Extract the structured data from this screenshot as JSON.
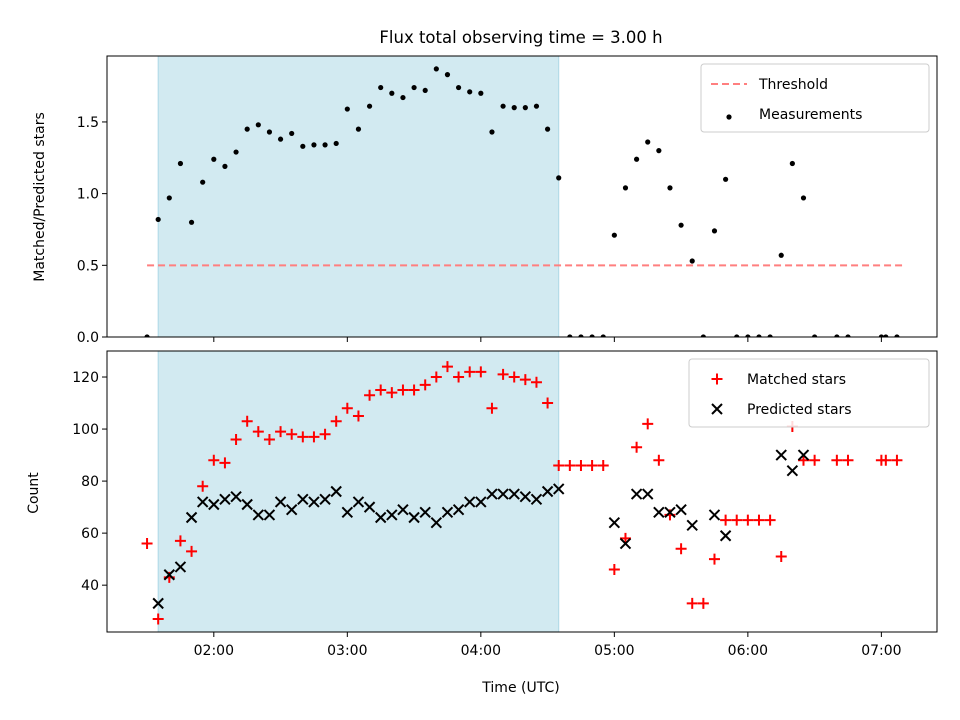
{
  "figure": {
    "title": "Flux total observing time = 3.00 h"
  },
  "chart_data": [
    {
      "type": "scatter",
      "ylabel": "Matched/Predicted stars",
      "ylim": [
        0,
        1.96
      ],
      "xlim": [
        "01:12",
        "07:25"
      ],
      "grid": false,
      "legend_position": "upper-right",
      "yticks": [
        {
          "value": 0.0,
          "label": "0.0"
        },
        {
          "value": 0.5,
          "label": "0.5"
        },
        {
          "value": 1.0,
          "label": "1.0"
        },
        {
          "value": 1.5,
          "label": "1.5"
        }
      ],
      "xticks": [
        "02:00",
        "03:00",
        "04:00",
        "05:00",
        "06:00",
        "07:00"
      ],
      "shaded_interval": {
        "start": "01:35",
        "end": "04:35",
        "color": "#add8e6"
      },
      "threshold": {
        "name": "Threshold",
        "value": 0.5,
        "x_start": "01:30",
        "x_end": "07:11",
        "color": "#ff7f7f",
        "style": "dashed"
      },
      "series": [
        {
          "name": "Measurements",
          "color": "#000000",
          "marker": "dot",
          "points": [
            [
              "01:30",
              0.0
            ],
            [
              "01:35",
              0.82
            ],
            [
              "01:40",
              0.97
            ],
            [
              "01:45",
              1.21
            ],
            [
              "01:50",
              0.8
            ],
            [
              "01:55",
              1.08
            ],
            [
              "02:00",
              1.24
            ],
            [
              "02:05",
              1.19
            ],
            [
              "02:10",
              1.29
            ],
            [
              "02:15",
              1.45
            ],
            [
              "02:20",
              1.48
            ],
            [
              "02:25",
              1.43
            ],
            [
              "02:30",
              1.38
            ],
            [
              "02:35",
              1.42
            ],
            [
              "02:40",
              1.33
            ],
            [
              "02:45",
              1.34
            ],
            [
              "02:50",
              1.34
            ],
            [
              "02:55",
              1.35
            ],
            [
              "03:00",
              1.59
            ],
            [
              "03:05",
              1.45
            ],
            [
              "03:10",
              1.61
            ],
            [
              "03:15",
              1.74
            ],
            [
              "03:20",
              1.7
            ],
            [
              "03:25",
              1.67
            ],
            [
              "03:30",
              1.74
            ],
            [
              "03:35",
              1.72
            ],
            [
              "03:40",
              1.87
            ],
            [
              "03:45",
              1.83
            ],
            [
              "03:50",
              1.74
            ],
            [
              "03:55",
              1.71
            ],
            [
              "04:00",
              1.7
            ],
            [
              "04:05",
              1.43
            ],
            [
              "04:10",
              1.61
            ],
            [
              "04:15",
              1.6
            ],
            [
              "04:20",
              1.6
            ],
            [
              "04:25",
              1.61
            ],
            [
              "04:30",
              1.45
            ],
            [
              "04:35",
              1.11
            ],
            [
              "04:40",
              0.0
            ],
            [
              "04:45",
              0.0
            ],
            [
              "04:50",
              0.0
            ],
            [
              "04:55",
              0.0
            ],
            [
              "05:00",
              0.71
            ],
            [
              "05:05",
              1.04
            ],
            [
              "05:10",
              1.24
            ],
            [
              "05:15",
              1.36
            ],
            [
              "05:20",
              1.3
            ],
            [
              "05:25",
              1.04
            ],
            [
              "05:30",
              0.78
            ],
            [
              "05:35",
              0.53
            ],
            [
              "05:40",
              0.0
            ],
            [
              "05:45",
              0.74
            ],
            [
              "05:50",
              1.1
            ],
            [
              "05:55",
              0.0
            ],
            [
              "06:00",
              0.0
            ],
            [
              "06:05",
              0.0
            ],
            [
              "06:10",
              0.0
            ],
            [
              "06:15",
              0.57
            ],
            [
              "06:20",
              1.21
            ],
            [
              "06:25",
              0.97
            ],
            [
              "06:30",
              0.0
            ],
            [
              "06:40",
              0.0
            ],
            [
              "06:45",
              0.0
            ],
            [
              "07:00",
              0.0
            ],
            [
              "07:02",
              0.0
            ],
            [
              "07:07",
              0.0
            ]
          ]
        }
      ]
    },
    {
      "type": "scatter",
      "xlabel": "Time (UTC)",
      "ylabel": "Count",
      "ylim": [
        22,
        130
      ],
      "xlim": [
        "01:12",
        "07:25"
      ],
      "grid": false,
      "legend_position": "upper-right",
      "yticks": [
        {
          "value": 40,
          "label": "40"
        },
        {
          "value": 60,
          "label": "60"
        },
        {
          "value": 80,
          "label": "80"
        },
        {
          "value": 100,
          "label": "100"
        },
        {
          "value": 120,
          "label": "120"
        }
      ],
      "xticks": [
        "02:00",
        "03:00",
        "04:00",
        "05:00",
        "06:00",
        "07:00"
      ],
      "shaded_interval": {
        "start": "01:35",
        "end": "04:35",
        "color": "#add8e6"
      },
      "series": [
        {
          "name": "Matched stars",
          "color": "#ff0000",
          "marker": "plus",
          "points": [
            [
              "01:30",
              56
            ],
            [
              "01:35",
              27
            ],
            [
              "01:40",
              43
            ],
            [
              "01:45",
              57
            ],
            [
              "01:50",
              53
            ],
            [
              "01:55",
              78
            ],
            [
              "02:00",
              88
            ],
            [
              "02:05",
              87
            ],
            [
              "02:10",
              96
            ],
            [
              "02:15",
              103
            ],
            [
              "02:20",
              99
            ],
            [
              "02:25",
              96
            ],
            [
              "02:30",
              99
            ],
            [
              "02:35",
              98
            ],
            [
              "02:40",
              97
            ],
            [
              "02:45",
              97
            ],
            [
              "02:50",
              98
            ],
            [
              "02:55",
              103
            ],
            [
              "03:00",
              108
            ],
            [
              "03:05",
              105
            ],
            [
              "03:10",
              113
            ],
            [
              "03:15",
              115
            ],
            [
              "03:20",
              114
            ],
            [
              "03:25",
              115
            ],
            [
              "03:30",
              115
            ],
            [
              "03:35",
              117
            ],
            [
              "03:40",
              120
            ],
            [
              "03:45",
              124
            ],
            [
              "03:50",
              120
            ],
            [
              "03:55",
              122
            ],
            [
              "04:00",
              122
            ],
            [
              "04:05",
              108
            ],
            [
              "04:10",
              121
            ],
            [
              "04:15",
              120
            ],
            [
              "04:20",
              119
            ],
            [
              "04:25",
              118
            ],
            [
              "04:30",
              110
            ],
            [
              "04:35",
              86
            ],
            [
              "04:40",
              86
            ],
            [
              "04:45",
              86
            ],
            [
              "04:50",
              86
            ],
            [
              "04:55",
              86
            ],
            [
              "05:00",
              46
            ],
            [
              "05:05",
              58
            ],
            [
              "05:10",
              93
            ],
            [
              "05:15",
              102
            ],
            [
              "05:20",
              88
            ],
            [
              "05:25",
              67
            ],
            [
              "05:30",
              54
            ],
            [
              "05:35",
              33
            ],
            [
              "05:40",
              33
            ],
            [
              "05:45",
              50
            ],
            [
              "05:50",
              65
            ],
            [
              "05:55",
              65
            ],
            [
              "06:00",
              65
            ],
            [
              "06:05",
              65
            ],
            [
              "06:10",
              65
            ],
            [
              "06:15",
              51
            ],
            [
              "06:20",
              101
            ],
            [
              "06:25",
              88
            ],
            [
              "06:30",
              88
            ],
            [
              "06:40",
              88
            ],
            [
              "06:45",
              88
            ],
            [
              "07:00",
              88
            ],
            [
              "07:02",
              88
            ],
            [
              "07:07",
              88
            ]
          ]
        },
        {
          "name": "Predicted stars",
          "color": "#000000",
          "marker": "x",
          "points": [
            [
              "01:35",
              33
            ],
            [
              "01:40",
              44
            ],
            [
              "01:45",
              47
            ],
            [
              "01:50",
              66
            ],
            [
              "01:55",
              72
            ],
            [
              "02:00",
              71
            ],
            [
              "02:05",
              73
            ],
            [
              "02:10",
              74
            ],
            [
              "02:15",
              71
            ],
            [
              "02:20",
              67
            ],
            [
              "02:25",
              67
            ],
            [
              "02:30",
              72
            ],
            [
              "02:35",
              69
            ],
            [
              "02:40",
              73
            ],
            [
              "02:45",
              72
            ],
            [
              "02:50",
              73
            ],
            [
              "02:55",
              76
            ],
            [
              "03:00",
              68
            ],
            [
              "03:05",
              72
            ],
            [
              "03:10",
              70
            ],
            [
              "03:15",
              66
            ],
            [
              "03:20",
              67
            ],
            [
              "03:25",
              69
            ],
            [
              "03:30",
              66
            ],
            [
              "03:35",
              68
            ],
            [
              "03:40",
              64
            ],
            [
              "03:45",
              68
            ],
            [
              "03:50",
              69
            ],
            [
              "03:55",
              72
            ],
            [
              "04:00",
              72
            ],
            [
              "04:05",
              75
            ],
            [
              "04:10",
              75
            ],
            [
              "04:15",
              75
            ],
            [
              "04:20",
              74
            ],
            [
              "04:25",
              73
            ],
            [
              "04:30",
              76
            ],
            [
              "04:35",
              77
            ],
            [
              "05:00",
              64
            ],
            [
              "05:05",
              56
            ],
            [
              "05:10",
              75
            ],
            [
              "05:15",
              75
            ],
            [
              "05:20",
              68
            ],
            [
              "05:25",
              68
            ],
            [
              "05:30",
              69
            ],
            [
              "05:35",
              63
            ],
            [
              "05:45",
              67
            ],
            [
              "05:50",
              59
            ],
            [
              "06:15",
              90
            ],
            [
              "06:20",
              84
            ],
            [
              "06:25",
              90
            ]
          ]
        }
      ]
    }
  ]
}
